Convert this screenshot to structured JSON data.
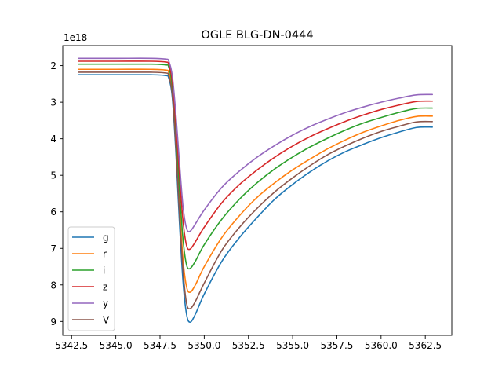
{
  "chart_data": {
    "type": "line",
    "title": "OGLE BLG-DN-0444",
    "xlabel": "",
    "ylabel": "",
    "y_offset_label": "1e18",
    "y_inverted": true,
    "xlim": [
      5342.0,
      5364.0
    ],
    "ylim": [
      9.38,
      1.45
    ],
    "x_ticks": [
      5342.5,
      5345.0,
      5347.5,
      5350.0,
      5352.5,
      5355.0,
      5357.5,
      5360.0,
      5362.5
    ],
    "x_tick_labels": [
      "5342.5",
      "5345.0",
      "5347.5",
      "5350.0",
      "5352.5",
      "5355.0",
      "5357.5",
      "5360.0",
      "5362.5"
    ],
    "y_ticks": [
      2,
      3,
      4,
      5,
      6,
      7,
      8,
      9
    ],
    "y_tick_labels": [
      "2",
      "3",
      "4",
      "5",
      "6",
      "7",
      "8",
      "9"
    ],
    "legend_position": "lower-left",
    "grid": false,
    "x": [
      5342.9,
      5345.0,
      5347.0,
      5347.8,
      5348.0,
      5348.2,
      5348.4,
      5348.6,
      5348.8,
      5349.0,
      5349.2,
      5349.5,
      5350.0,
      5351.0,
      5352.0,
      5353.0,
      5354.0,
      5355.0,
      5356.0,
      5357.0,
      5358.0,
      5359.0,
      5360.0,
      5361.0,
      5362.0,
      5362.9
    ],
    "series": [
      {
        "name": "g",
        "color": "#1f77b4",
        "values": [
          2.25,
          2.25,
          2.25,
          2.27,
          2.35,
          2.9,
          4.4,
          6.3,
          7.9,
          8.8,
          9.02,
          8.8,
          8.25,
          7.35,
          6.7,
          6.15,
          5.65,
          5.25,
          4.9,
          4.6,
          4.35,
          4.15,
          3.97,
          3.82,
          3.69,
          3.68
        ]
      },
      {
        "name": "r",
        "color": "#ff7f0e",
        "values": [
          2.1,
          2.1,
          2.1,
          2.12,
          2.2,
          2.75,
          4.1,
          5.8,
          7.3,
          8.05,
          8.2,
          8.0,
          7.5,
          6.7,
          6.1,
          5.6,
          5.2,
          4.85,
          4.55,
          4.27,
          4.03,
          3.82,
          3.65,
          3.5,
          3.39,
          3.38
        ]
      },
      {
        "name": "i",
        "color": "#2ca02c",
        "values": [
          1.96,
          1.96,
          1.96,
          1.98,
          2.05,
          2.6,
          3.85,
          5.4,
          6.75,
          7.45,
          7.55,
          7.35,
          6.9,
          6.2,
          5.65,
          5.2,
          4.82,
          4.5,
          4.22,
          3.98,
          3.76,
          3.57,
          3.42,
          3.28,
          3.17,
          3.16
        ]
      },
      {
        "name": "z",
        "color": "#d62728",
        "values": [
          1.88,
          1.88,
          1.88,
          1.9,
          1.97,
          2.45,
          3.6,
          5.0,
          6.25,
          6.92,
          7.02,
          6.82,
          6.42,
          5.75,
          5.25,
          4.85,
          4.5,
          4.2,
          3.94,
          3.72,
          3.52,
          3.35,
          3.2,
          3.08,
          2.98,
          2.97
        ]
      },
      {
        "name": "y",
        "color": "#9467bd",
        "values": [
          1.8,
          1.8,
          1.8,
          1.82,
          1.88,
          2.3,
          3.35,
          4.65,
          5.85,
          6.45,
          6.53,
          6.33,
          5.95,
          5.33,
          4.88,
          4.5,
          4.18,
          3.9,
          3.66,
          3.46,
          3.28,
          3.13,
          3.0,
          2.89,
          2.8,
          2.79
        ]
      },
      {
        "name": "V",
        "color": "#8c564b",
        "values": [
          2.18,
          2.18,
          2.18,
          2.2,
          2.28,
          2.82,
          4.25,
          6.05,
          7.6,
          8.5,
          8.65,
          8.45,
          7.95,
          7.05,
          6.42,
          5.9,
          5.45,
          5.07,
          4.73,
          4.43,
          4.19,
          3.98,
          3.8,
          3.66,
          3.54,
          3.53
        ]
      }
    ]
  }
}
